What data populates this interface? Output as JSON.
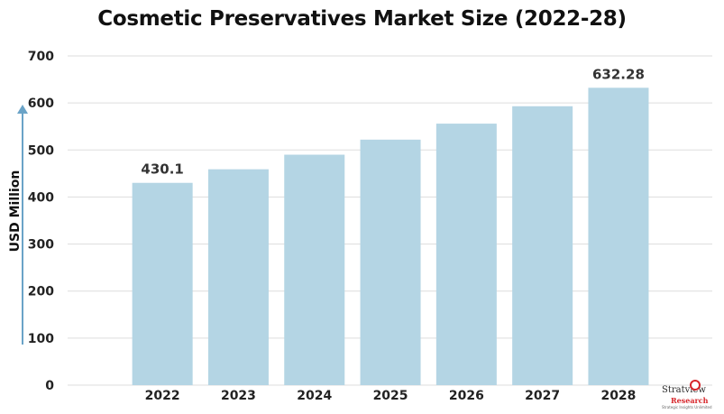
{
  "chart_data": {
    "type": "bar",
    "title": "Cosmetic Preservatives Market Size (2022-28)",
    "xlabel": "",
    "ylabel": "USD Million",
    "categories": [
      "2022",
      "2023",
      "2024",
      "2025",
      "2026",
      "2027",
      "2028"
    ],
    "values": [
      430.1,
      459,
      490,
      522,
      556,
      593,
      632.28
    ],
    "data_labels": {
      "0": "430.1",
      "6": "632.28"
    },
    "ylim": [
      0,
      700
    ],
    "yticks": [
      0,
      100,
      200,
      300,
      400,
      500,
      600,
      700
    ],
    "grid": true,
    "bar_color": "#b4d5e4",
    "grid_color": "#dddddd",
    "axis_arrow_color": "#6aa3c7"
  },
  "logo": {
    "name": "Stratview",
    "sub": "Research",
    "tagline": "Strategic Insights Unlimited"
  }
}
